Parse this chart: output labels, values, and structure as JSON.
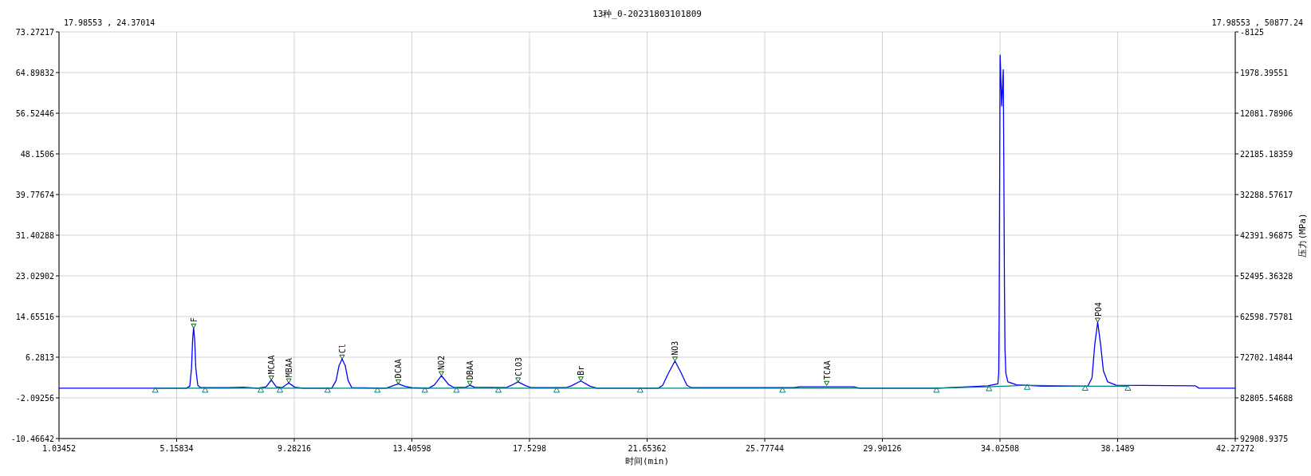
{
  "chart_data": {
    "type": "line",
    "title": "13种_0-20231803101809",
    "xlabel": "时间(min)",
    "y2label": "压力(MPa)",
    "xlim": [
      1.03452,
      42.27272
    ],
    "xticks": [
      1.03452,
      5.15834,
      9.28216,
      13.40598,
      17.5298,
      21.65362,
      25.77744,
      29.90126,
      34.02508,
      38.1489,
      42.27272
    ],
    "ylim": [
      -10.46642,
      73.27217
    ],
    "yticks": [
      -10.46642,
      -2.09256,
      6.2813,
      14.65516,
      23.02902,
      31.40288,
      39.77674,
      48.1506,
      56.52446,
      64.89832,
      73.27217
    ],
    "y2lim": [
      92908.9375,
      -8125
    ],
    "y2ticks": [
      92908.9375,
      82805.54688,
      72702.14844,
      62598.75781,
      52495.36328,
      42391.96875,
      32288.57617,
      22185.18359,
      12081.78906,
      1978.39551,
      -8125
    ],
    "grid": true,
    "series": [
      {
        "color": "#0000ff",
        "x": [
          1.04,
          4.4,
          5.5,
          5.62,
          5.68,
          5.72,
          5.754,
          5.79,
          5.83,
          5.9,
          6.0,
          7.0,
          7.5,
          8.0,
          8.3,
          8.48,
          8.65,
          8.85,
          9.09,
          9.3,
          9.6,
          10.6,
          10.75,
          10.85,
          10.96,
          11.07,
          11.17,
          11.3,
          12.5,
          12.7,
          12.93,
          13.15,
          13.4,
          14.0,
          14.2,
          14.44,
          14.7,
          14.9,
          15.3,
          15.44,
          15.6,
          16.7,
          16.9,
          17.13,
          17.4,
          17.6,
          18.8,
          19.0,
          19.33,
          19.65,
          19.9,
          22.05,
          22.2,
          22.4,
          22.63,
          22.85,
          23.05,
          23.2,
          26.8,
          27.0,
          28.9,
          29.1,
          31.8,
          32.9,
          33.6,
          33.95,
          33.98,
          33.995,
          34.01,
          34.03,
          34.085,
          34.14,
          34.16,
          34.18,
          34.2,
          34.23,
          34.3,
          34.6,
          35.5,
          37.1,
          37.25,
          37.35,
          37.45,
          37.55,
          37.65,
          37.8,
          38.1,
          40.87,
          41.0,
          42.27
        ],
        "values": [
          -0.1,
          -0.1,
          -0.1,
          0.3,
          4,
          10,
          12.3,
          10,
          4,
          0.5,
          0.0,
          0.0,
          0.1,
          -0.1,
          0.2,
          1.6,
          0.2,
          0.0,
          1.0,
          0.1,
          -0.1,
          -0.1,
          1.5,
          4.5,
          5.9,
          4.5,
          1.5,
          0.0,
          -0.1,
          0.3,
          0.8,
          0.3,
          0.0,
          -0.1,
          0.6,
          2.5,
          0.6,
          0.0,
          0.1,
          0.5,
          0.1,
          0.0,
          0.5,
          1.2,
          0.4,
          0.0,
          0.0,
          0.4,
          1.4,
          0.3,
          -0.1,
          -0.1,
          0.5,
          3.0,
          5.5,
          3.0,
          0.5,
          0.0,
          0.0,
          0.2,
          0.2,
          -0.1,
          -0.1,
          0.2,
          0.4,
          0.8,
          3,
          14,
          38,
          68.5,
          58,
          65.5,
          45,
          22,
          8,
          3,
          1.2,
          0.6,
          0.3,
          0.3,
          2,
          9,
          13.5,
          9,
          3.5,
          1.2,
          0.5,
          0.4,
          -0.1,
          -0.1
        ]
      },
      {
        "color": "#008080",
        "marker": "triangle",
        "x": [
          4.41,
          6.16,
          8.11,
          8.78,
          10.45,
          12.2,
          13.86,
          14.97,
          16.44,
          18.48,
          21.41,
          26.4,
          31.8,
          33.64,
          34.98,
          37.01,
          38.51
        ],
        "values": [
          -0.1,
          -0.1,
          -0.1,
          -0.1,
          -0.1,
          -0.1,
          -0.1,
          -0.1,
          -0.1,
          -0.1,
          -0.1,
          -0.1,
          -0.1,
          0.2,
          0.5,
          0.3,
          0.3
        ]
      }
    ],
    "annotations": [
      "17.98553 , 24.37014",
      "17.98553 , 50877.24",
      {
        "text": "F",
        "x": 5.754,
        "y": 12.3
      },
      {
        "text": "MCAA",
        "x": 8.48,
        "y": 1.6
      },
      {
        "text": "MBAA",
        "x": 9.09,
        "y": 1.0
      },
      {
        "text": "Cl",
        "x": 10.96,
        "y": 5.9
      },
      {
        "text": "DCAA",
        "x": 12.93,
        "y": 0.8
      },
      {
        "text": "NO2",
        "x": 14.44,
        "y": 2.5
      },
      {
        "text": "DBAA",
        "x": 15.44,
        "y": 0.5
      },
      {
        "text": "ClO3",
        "x": 17.13,
        "y": 1.2
      },
      {
        "text": "Br",
        "x": 19.33,
        "y": 1.4
      },
      {
        "text": "NO3",
        "x": 22.63,
        "y": 5.5
      },
      {
        "text": "TCAA",
        "x": 27.95,
        "y": 0.5
      },
      {
        "text": "PO4",
        "x": 37.45,
        "y": 13.5
      }
    ]
  }
}
